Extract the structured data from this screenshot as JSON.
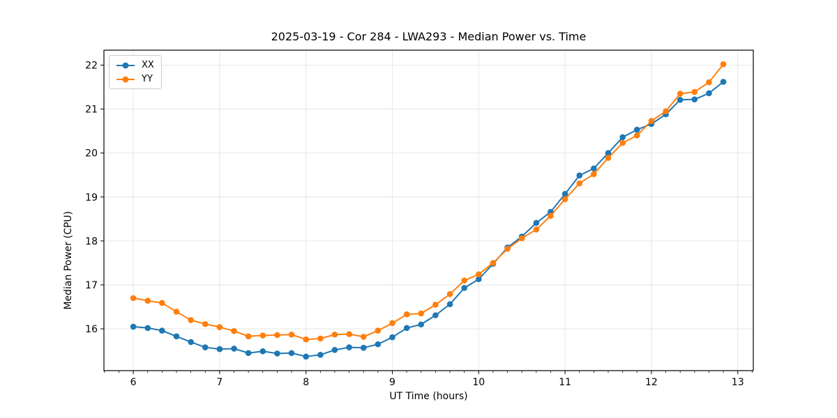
{
  "chart_data": {
    "type": "line",
    "title": "2025-03-19 - Cor 284 - LWA293 - Median Power vs. Time",
    "xlabel": "UT Time (hours)",
    "ylabel": "Median Power (CPU)",
    "x": [
      6.0,
      6.167,
      6.333,
      6.5,
      6.667,
      6.833,
      7.0,
      7.167,
      7.333,
      7.5,
      7.667,
      7.833,
      8.0,
      8.167,
      8.333,
      8.5,
      8.667,
      8.833,
      9.0,
      9.167,
      9.333,
      9.5,
      9.667,
      9.833,
      10.0,
      10.167,
      10.333,
      10.5,
      10.667,
      10.833,
      11.0,
      11.167,
      11.333,
      11.5,
      11.667,
      11.833,
      12.0,
      12.167,
      12.333,
      12.5,
      12.667,
      12.833
    ],
    "series": [
      {
        "name": "XX",
        "color": "#1f77b4",
        "marker": "circle",
        "values": [
          16.05,
          16.02,
          15.96,
          15.83,
          15.7,
          15.58,
          15.54,
          15.55,
          15.45,
          15.49,
          15.44,
          15.45,
          15.37,
          15.41,
          15.52,
          15.58,
          15.57,
          15.65,
          15.81,
          16.02,
          16.1,
          16.31,
          16.56,
          16.93,
          17.13,
          17.48,
          17.85,
          18.1,
          18.41,
          18.66,
          19.07,
          19.49,
          19.65,
          20.0,
          20.36,
          20.53,
          20.66,
          20.88,
          21.21,
          21.22,
          21.36,
          21.62
        ]
      },
      {
        "name": "YY",
        "color": "#ff7f0e",
        "marker": "circle",
        "values": [
          16.7,
          16.64,
          16.59,
          16.39,
          16.2,
          16.11,
          16.04,
          15.95,
          15.83,
          15.85,
          15.86,
          15.87,
          15.76,
          15.78,
          15.87,
          15.88,
          15.82,
          15.96,
          16.13,
          16.33,
          16.35,
          16.55,
          16.79,
          17.1,
          17.24,
          17.5,
          17.82,
          18.06,
          18.26,
          18.57,
          18.95,
          19.31,
          19.52,
          19.89,
          20.23,
          20.4,
          20.73,
          20.95,
          21.35,
          21.39,
          21.61,
          22.02
        ]
      }
    ],
    "xlim": [
      5.66,
      13.18
    ],
    "ylim": [
      15.05,
      22.34
    ],
    "x_ticks": [
      6,
      7,
      8,
      9,
      10,
      11,
      12,
      13
    ],
    "y_ticks": [
      16,
      17,
      18,
      19,
      20,
      21,
      22
    ],
    "x_minor_step": 0.1666667,
    "grid": true,
    "legend_position": "upper left",
    "colors": {
      "grid": "#e6e6e6",
      "spine": "#000000",
      "background": "#ffffff",
      "tick_label": "#000000"
    }
  }
}
